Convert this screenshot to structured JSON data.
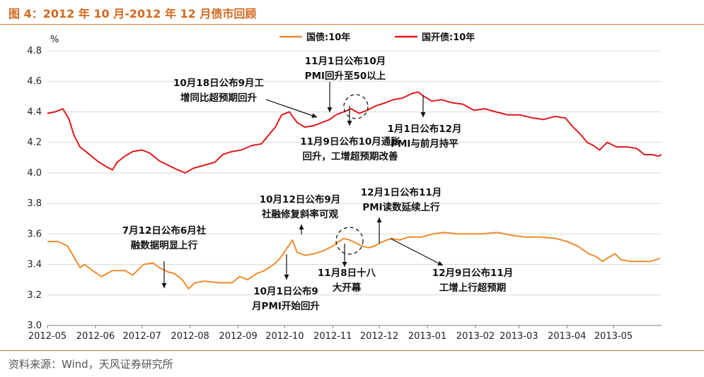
{
  "title": "图 4：2012 年 10 月-2012 年 12 月债市回顾",
  "source": "资料来源：Wind，天风证券研究所",
  "colors": {
    "accent": "#e07a2e",
    "series1": "#f08a2c",
    "series2": "#e0191b"
  },
  "chart_data": {
    "type": "line",
    "ylabel": "%",
    "ylim": [
      3.0,
      4.8
    ],
    "yticks": [
      "3.0",
      "3.2",
      "3.4",
      "3.6",
      "3.8",
      "4.0",
      "4.2",
      "4.4",
      "4.6",
      "4.8"
    ],
    "xlim": [
      "2012-05-01",
      "2013-06-01"
    ],
    "xticks": [
      "2012-05",
      "2012-06",
      "2012-07",
      "2012-08",
      "2012-09",
      "2012-10",
      "2012-11",
      "2012-12",
      "2013-01",
      "2013-02",
      "2013-03",
      "2013-04",
      "2013-05"
    ],
    "grid": "horizontal",
    "legend": "top",
    "series": [
      {
        "name": "国债:10年",
        "color": "#f08a2c",
        "points": [
          [
            "2012-05-01",
            3.55
          ],
          [
            "2012-05-08",
            3.55
          ],
          [
            "2012-05-14",
            3.52
          ],
          [
            "2012-05-18",
            3.45
          ],
          [
            "2012-05-22",
            3.38
          ],
          [
            "2012-05-25",
            3.4
          ],
          [
            "2012-05-30",
            3.36
          ],
          [
            "2012-06-05",
            3.32
          ],
          [
            "2012-06-12",
            3.36
          ],
          [
            "2012-06-20",
            3.36
          ],
          [
            "2012-06-25",
            3.33
          ],
          [
            "2012-07-02",
            3.4
          ],
          [
            "2012-07-08",
            3.41
          ],
          [
            "2012-07-12",
            3.38
          ],
          [
            "2012-07-18",
            3.35
          ],
          [
            "2012-07-22",
            3.34
          ],
          [
            "2012-07-27",
            3.3
          ],
          [
            "2012-07-31",
            3.24
          ],
          [
            "2012-08-04",
            3.28
          ],
          [
            "2012-08-10",
            3.29
          ],
          [
            "2012-08-20",
            3.28
          ],
          [
            "2012-08-28",
            3.28
          ],
          [
            "2012-09-02",
            3.32
          ],
          [
            "2012-09-07",
            3.3
          ],
          [
            "2012-09-13",
            3.34
          ],
          [
            "2012-09-18",
            3.36
          ],
          [
            "2012-09-24",
            3.4
          ],
          [
            "2012-09-28",
            3.44
          ],
          [
            "2012-10-02",
            3.5
          ],
          [
            "2012-10-06",
            3.56
          ],
          [
            "2012-10-09",
            3.48
          ],
          [
            "2012-10-14",
            3.46
          ],
          [
            "2012-10-20",
            3.47
          ],
          [
            "2012-10-26",
            3.49
          ],
          [
            "2012-11-01",
            3.52
          ],
          [
            "2012-11-05",
            3.55
          ],
          [
            "2012-11-08",
            3.57
          ],
          [
            "2012-11-12",
            3.56
          ],
          [
            "2012-11-16",
            3.54
          ],
          [
            "2012-11-20",
            3.52
          ],
          [
            "2012-11-24",
            3.51
          ],
          [
            "2012-11-28",
            3.52
          ],
          [
            "2012-12-01",
            3.54
          ],
          [
            "2012-12-06",
            3.56
          ],
          [
            "2012-12-09",
            3.57
          ],
          [
            "2012-12-14",
            3.56
          ],
          [
            "2012-12-20",
            3.58
          ],
          [
            "2012-12-28",
            3.58
          ],
          [
            "2013-01-05",
            3.6
          ],
          [
            "2013-01-12",
            3.61
          ],
          [
            "2013-01-20",
            3.6
          ],
          [
            "2013-01-28",
            3.6
          ],
          [
            "2013-02-05",
            3.6
          ],
          [
            "2013-02-15",
            3.61
          ],
          [
            "2013-02-25",
            3.59
          ],
          [
            "2013-03-05",
            3.58
          ],
          [
            "2013-03-15",
            3.58
          ],
          [
            "2013-03-25",
            3.57
          ],
          [
            "2013-04-01",
            3.55
          ],
          [
            "2013-04-08",
            3.52
          ],
          [
            "2013-04-15",
            3.47
          ],
          [
            "2013-04-20",
            3.45
          ],
          [
            "2013-04-24",
            3.42
          ],
          [
            "2013-04-27",
            3.44
          ],
          [
            "2013-05-02",
            3.47
          ],
          [
            "2013-05-06",
            3.43
          ],
          [
            "2013-05-12",
            3.42
          ],
          [
            "2013-05-18",
            3.42
          ],
          [
            "2013-05-25",
            3.42
          ],
          [
            "2013-05-31",
            3.44
          ]
        ]
      },
      {
        "name": "国开债:10年",
        "color": "#e0191b",
        "points": [
          [
            "2012-05-01",
            4.39
          ],
          [
            "2012-05-06",
            4.4
          ],
          [
            "2012-05-11",
            4.42
          ],
          [
            "2012-05-15",
            4.35
          ],
          [
            "2012-05-18",
            4.25
          ],
          [
            "2012-05-22",
            4.17
          ],
          [
            "2012-05-27",
            4.13
          ],
          [
            "2012-06-02",
            4.08
          ],
          [
            "2012-06-08",
            4.04
          ],
          [
            "2012-06-12",
            4.02
          ],
          [
            "2012-06-15",
            4.07
          ],
          [
            "2012-06-20",
            4.11
          ],
          [
            "2012-06-25",
            4.14
          ],
          [
            "2012-07-01",
            4.15
          ],
          [
            "2012-07-06",
            4.13
          ],
          [
            "2012-07-12",
            4.08
          ],
          [
            "2012-07-18",
            4.05
          ],
          [
            "2012-07-24",
            4.02
          ],
          [
            "2012-07-29",
            4.0
          ],
          [
            "2012-08-03",
            4.03
          ],
          [
            "2012-08-10",
            4.05
          ],
          [
            "2012-08-17",
            4.07
          ],
          [
            "2012-08-22",
            4.12
          ],
          [
            "2012-08-28",
            4.14
          ],
          [
            "2012-09-03",
            4.15
          ],
          [
            "2012-09-10",
            4.18
          ],
          [
            "2012-09-16",
            4.19
          ],
          [
            "2012-09-20",
            4.24
          ],
          [
            "2012-09-25",
            4.3
          ],
          [
            "2012-09-29",
            4.38
          ],
          [
            "2012-10-04",
            4.4
          ],
          [
            "2012-10-09",
            4.33
          ],
          [
            "2012-10-14",
            4.3
          ],
          [
            "2012-10-20",
            4.31
          ],
          [
            "2012-10-25",
            4.33
          ],
          [
            "2012-10-30",
            4.35
          ],
          [
            "2012-11-03",
            4.38
          ],
          [
            "2012-11-08",
            4.4
          ],
          [
            "2012-11-13",
            4.42
          ],
          [
            "2012-11-18",
            4.39
          ],
          [
            "2012-11-23",
            4.41
          ],
          [
            "2012-11-29",
            4.44
          ],
          [
            "2012-12-05",
            4.46
          ],
          [
            "2012-12-10",
            4.48
          ],
          [
            "2012-12-16",
            4.49
          ],
          [
            "2012-12-22",
            4.52
          ],
          [
            "2012-12-26",
            4.53
          ],
          [
            "2012-12-30",
            4.5
          ],
          [
            "2013-01-04",
            4.47
          ],
          [
            "2013-01-10",
            4.48
          ],
          [
            "2013-01-17",
            4.46
          ],
          [
            "2013-01-24",
            4.45
          ],
          [
            "2013-01-31",
            4.41
          ],
          [
            "2013-02-07",
            4.42
          ],
          [
            "2013-02-14",
            4.4
          ],
          [
            "2013-02-22",
            4.38
          ],
          [
            "2013-03-02",
            4.38
          ],
          [
            "2013-03-10",
            4.36
          ],
          [
            "2013-03-17",
            4.35
          ],
          [
            "2013-03-24",
            4.37
          ],
          [
            "2013-03-31",
            4.36
          ],
          [
            "2013-04-05",
            4.3
          ],
          [
            "2013-04-10",
            4.25
          ],
          [
            "2013-04-14",
            4.2
          ],
          [
            "2013-04-18",
            4.18
          ],
          [
            "2013-04-22",
            4.15
          ],
          [
            "2013-04-27",
            4.2
          ],
          [
            "2013-05-03",
            4.17
          ],
          [
            "2013-05-10",
            4.17
          ],
          [
            "2013-05-16",
            4.16
          ],
          [
            "2013-05-21",
            4.12
          ],
          [
            "2013-05-26",
            4.12
          ],
          [
            "2013-05-30",
            4.11
          ],
          [
            "2013-06-01",
            4.12
          ]
        ]
      }
    ],
    "annotations": [
      {
        "lines": [
          "11月1日公布10月",
          "PMI回升至50以上"
        ]
      },
      {
        "lines": [
          "10月18日公布9月工",
          "增同比超预期回升"
        ]
      },
      {
        "lines": [
          "11月9日公布10月通胀",
          "回升，工增超预期改善"
        ]
      },
      {
        "lines": [
          "1月1日公布12月",
          "PMI与前月持平"
        ]
      },
      {
        "lines": [
          "10月12日公布9月",
          "社融修复斜率可观"
        ]
      },
      {
        "lines": [
          "12月1日公布11月",
          "PMI读数延续上行"
        ]
      },
      {
        "lines": [
          "7月12日公布6月社",
          "融数据明显上行"
        ]
      },
      {
        "lines": [
          "10月1日公布9",
          "月PMI开始回升"
        ]
      },
      {
        "lines": [
          "11月8日十八",
          "大开幕"
        ]
      },
      {
        "lines": [
          "12月9日公布11月",
          "工增上行超预期"
        ]
      }
    ]
  }
}
